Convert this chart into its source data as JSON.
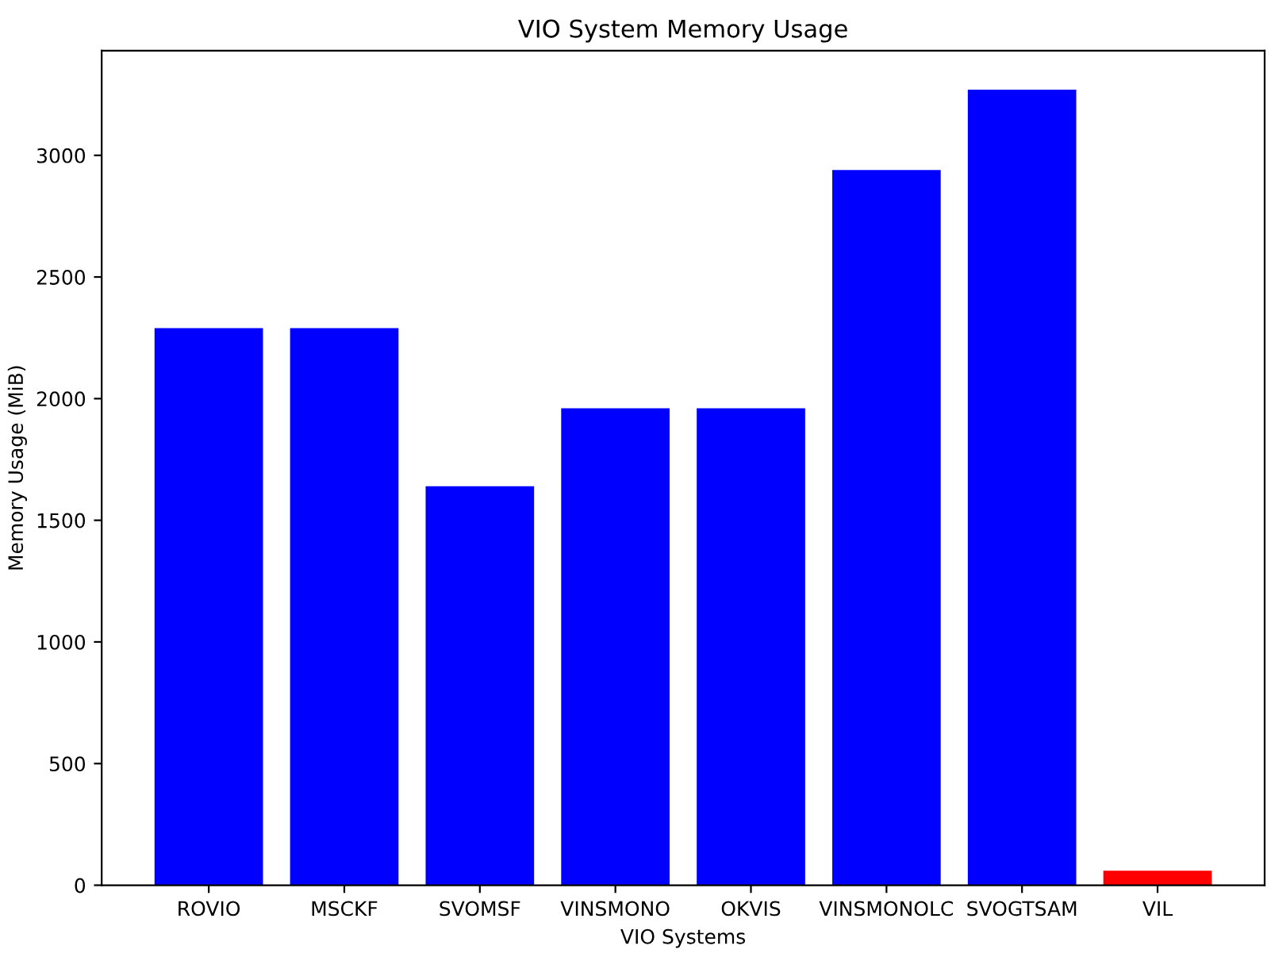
{
  "chart_data": {
    "type": "bar",
    "title": "VIO System Memory Usage",
    "xlabel": "VIO Systems",
    "ylabel": "Memory Usage (MiB)",
    "categories": [
      "ROVIO",
      "MSCKF",
      "SVOMSF",
      "VINSMONO",
      "OKVIS",
      "VINSMONOLC",
      "SVOGTSAM",
      "VIL"
    ],
    "values": [
      2290,
      2290,
      1640,
      1960,
      1960,
      2940,
      3270,
      60
    ],
    "colors": [
      "#0000ff",
      "#0000ff",
      "#0000ff",
      "#0000ff",
      "#0000ff",
      "#0000ff",
      "#0000ff",
      "#ff0000"
    ],
    "ylim": [
      0,
      3430
    ],
    "yticks": [
      0,
      500,
      1000,
      1500,
      2000,
      2500,
      3000
    ],
    "grid": false,
    "legend": false
  }
}
